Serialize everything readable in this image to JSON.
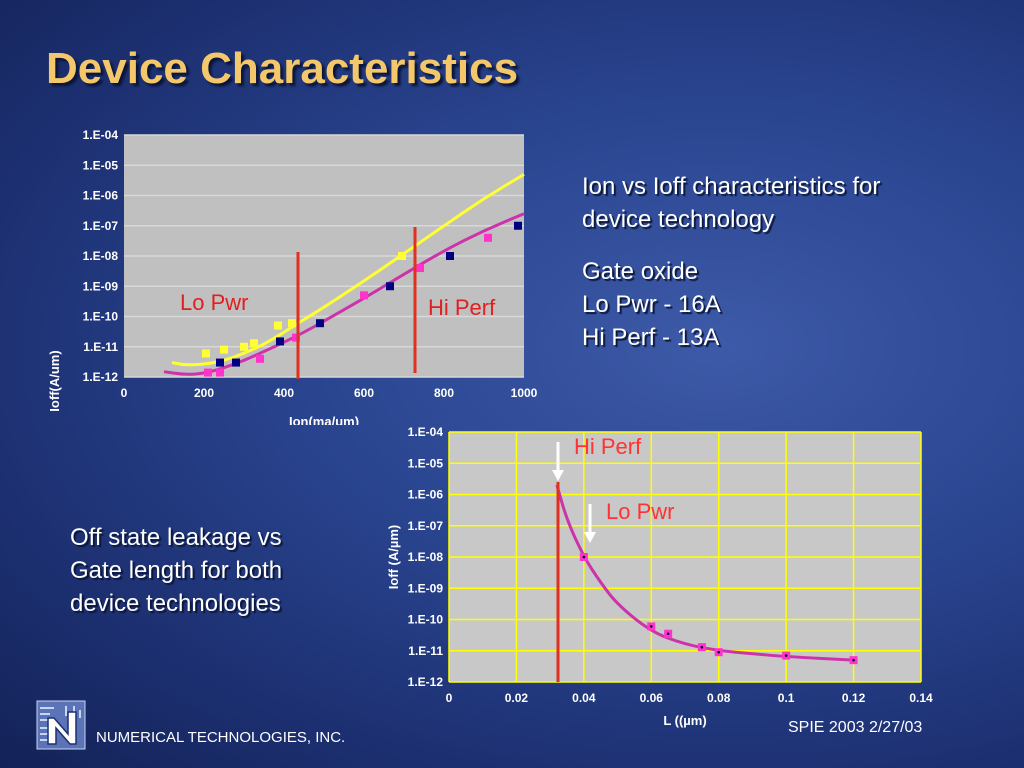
{
  "slide": {
    "title": "Device Characteristics",
    "desc1": [
      "Ion vs Ioff characteristics for",
      "device technology"
    ],
    "gate_oxide": [
      "Gate oxide",
      "Lo Pwr - 16A",
      "Hi Perf - 13A"
    ],
    "desc2": [
      "Off state leakage vs",
      "Gate length for both",
      "device technologies"
    ],
    "footer_left": "NUMERICAL TECHNOLOGIES, INC.",
    "footer_right": "SPIE 2003 2/27/03",
    "logo_icon": "nt-logo-icon"
  },
  "colors": {
    "title": "#f4c86a",
    "plot_bg_1": "#c0c0c0",
    "plot_bg_2": "#c8c8c8",
    "yellow": "#ffff33",
    "magenta": "#cc33aa",
    "pink_marker": "#ff33cc",
    "navy_marker": "#000080",
    "red_line": "#e03020",
    "label_red": "#ff3333",
    "grid_yellow": "#ffff00"
  },
  "chart_data": [
    {
      "type": "scatter",
      "xlabel": "Ion(ma/um)",
      "ylabel": "Ioff(A/um)",
      "xlim": [
        0,
        1000
      ],
      "ylim": [
        1e-12,
        0.0001
      ],
      "y_log": true,
      "x_ticks": [
        "0",
        "200",
        "400",
        "600",
        "800",
        "1000"
      ],
      "y_ticks": [
        "1.E-12",
        "1.E-11",
        "1.E-10",
        "1.E-09",
        "1.E-08",
        "1.E-07",
        "1.E-06",
        "1.E-05",
        "1.E-04"
      ],
      "grid": true,
      "annotations": [
        "Lo Pwr",
        "Hi Perf"
      ],
      "vlines": [
        435,
        730
      ],
      "series": [
        {
          "kind": "curve",
          "color": "yellow",
          "x": [
            120,
            150,
            200,
            250,
            300,
            350,
            400,
            450,
            500,
            600,
            700,
            800,
            900,
            1000
          ],
          "y": [
            3e-12,
            2.5e-12,
            2.6e-12,
            3.5e-12,
            6e-12,
            1.2e-11,
            3e-11,
            8e-11,
            2e-10,
            1.5e-09,
            1.2e-08,
            1e-07,
            8e-07,
            5e-06
          ]
        },
        {
          "kind": "markers",
          "color": "yellow",
          "x": [
            205,
            250,
            300,
            325,
            385,
            420,
            695
          ],
          "y": [
            6e-12,
            8e-12,
            1e-11,
            1.3e-11,
            5e-11,
            6e-11,
            1e-08
          ]
        },
        {
          "kind": "curve",
          "color": "magenta",
          "x": [
            100,
            150,
            200,
            250,
            300,
            350,
            400,
            450,
            500,
            600,
            700,
            800,
            900,
            1000
          ],
          "y": [
            1.5e-12,
            1.2e-12,
            1.3e-12,
            2e-12,
            3.5e-12,
            7e-12,
            1.4e-11,
            3e-11,
            7e-11,
            4e-10,
            2.5e-09,
            1.5e-08,
            7e-08,
            2.5e-07
          ]
        },
        {
          "kind": "markers",
          "color": "pink",
          "x": [
            210,
            240,
            340,
            430,
            600,
            740,
            910
          ],
          "y": [
            1.4e-12,
            1.4e-12,
            4e-12,
            2e-11,
            5e-10,
            4e-09,
            4e-08
          ]
        },
        {
          "kind": "markers",
          "color": "navy",
          "x": [
            240,
            280,
            390,
            490,
            665,
            815,
            985
          ],
          "y": [
            3e-12,
            3e-12,
            1.5e-11,
            6e-11,
            1e-09,
            1e-08,
            1e-07
          ]
        }
      ]
    },
    {
      "type": "scatter",
      "xlabel": "L ((µm)",
      "ylabel": "Ioff (A/µm)",
      "xlim": [
        0,
        0.14
      ],
      "ylim": [
        1e-12,
        0.0001
      ],
      "y_log": true,
      "x_ticks": [
        "0",
        "0.02",
        "0.04",
        "0.06",
        "0.08",
        "0.1",
        "0.12",
        "0.14"
      ],
      "y_ticks": [
        "1.E-12",
        "1.E-11",
        "1.E-10",
        "1.E-09",
        "1.E-08",
        "1.E-07",
        "1.E-06",
        "1.E-05",
        "1.E-04"
      ],
      "grid": true,
      "annotations": [
        "Hi Perf",
        "Lo Pwr"
      ],
      "vlines": [
        0.032
      ],
      "series": [
        {
          "kind": "curve",
          "color": "magenta",
          "x": [
            0.032,
            0.035,
            0.04,
            0.045,
            0.05,
            0.06,
            0.07,
            0.08,
            0.09,
            0.1,
            0.12
          ],
          "y": [
            2e-06,
            1.5e-07,
            1e-08,
            1.5e-09,
            3e-10,
            4e-11,
            1.6e-11,
            1e-11,
            8e-12,
            6.5e-12,
            5e-12
          ]
        },
        {
          "kind": "markers",
          "color": "pink",
          "x": [
            0.04,
            0.06,
            0.065,
            0.075,
            0.08,
            0.1,
            0.12
          ],
          "y": [
            1e-08,
            6e-11,
            3.5e-11,
            1.3e-11,
            9e-12,
            7e-12,
            5e-12
          ]
        }
      ]
    }
  ]
}
